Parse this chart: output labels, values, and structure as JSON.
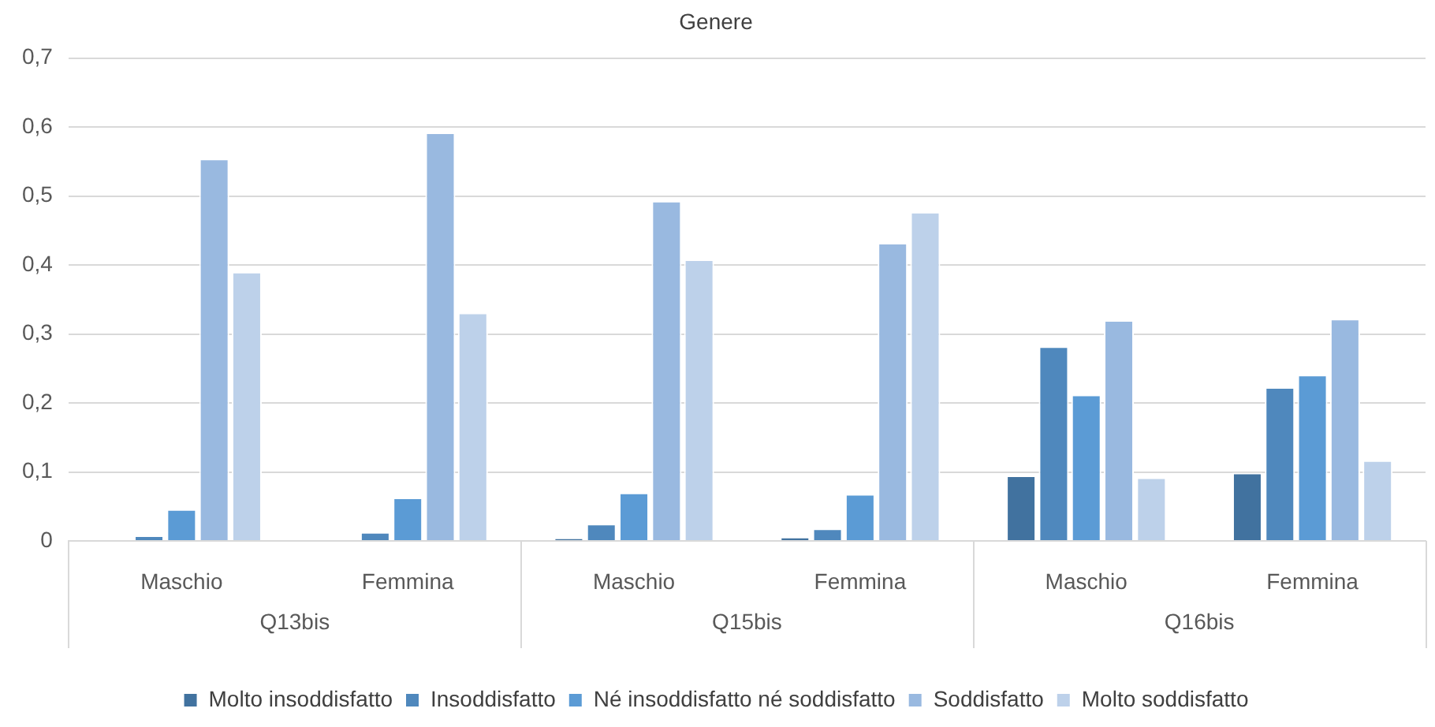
{
  "chart_data": {
    "type": "bar",
    "title": "Genere",
    "categories": [
      "Maschio",
      "Femmina",
      "Maschio",
      "Femmina",
      "Maschio",
      "Femmina"
    ],
    "annotations": [
      "Q13bis",
      "Q15bis",
      "Q16bis"
    ],
    "series": [
      {
        "name": "Molto insoddisfatto",
        "color": "#41729f",
        "values": [
          0,
          0,
          0.004,
          0.006,
          0.095,
          0.099
        ]
      },
      {
        "name": "Insoddisfatto",
        "color": "#4f88bd",
        "values": [
          0.008,
          0.013,
          0.025,
          0.018,
          0.282,
          0.223
        ]
      },
      {
        "name": "Né insoddisfatto né soddisfatto",
        "color": "#5b9bd5",
        "values": [
          0.046,
          0.063,
          0.07,
          0.068,
          0.212,
          0.241
        ]
      },
      {
        "name": "Soddisfatto",
        "color": "#99b9e0",
        "values": [
          0.554,
          0.592,
          0.493,
          0.432,
          0.32,
          0.322
        ]
      },
      {
        "name": "Molto soddisfatto",
        "color": "#bdd1ea",
        "values": [
          0.39,
          0.331,
          0.408,
          0.477,
          0.092,
          0.117
        ]
      }
    ],
    "ylim": [
      0,
      0.7
    ],
    "yticks": [
      0,
      {
        "value": 0.1,
        "label": "0,1"
      },
      {
        "value": 0.2,
        "label": "0,2"
      },
      {
        "value": 0.3,
        "label": "0,3"
      },
      {
        "value": 0.4,
        "label": "0,4"
      },
      {
        "value": 0.5,
        "label": "0,5"
      },
      {
        "value": 0.6,
        "label": "0,6"
      },
      {
        "value": 0.7,
        "label": "0,7"
      }
    ],
    "grid": "y",
    "legend": "bottom"
  }
}
